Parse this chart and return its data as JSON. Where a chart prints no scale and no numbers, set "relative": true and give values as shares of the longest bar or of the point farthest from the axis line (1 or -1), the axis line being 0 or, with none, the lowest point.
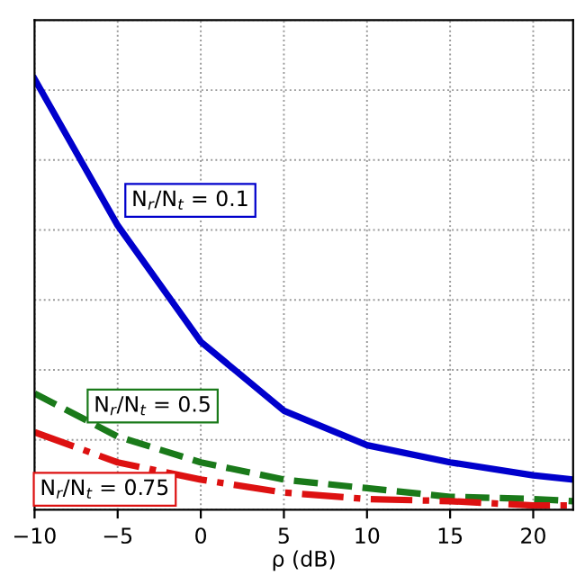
{
  "chart_data": {
    "type": "line",
    "xlabel": "ρ (dB)",
    "relative": true,
    "grid": true,
    "legend": false,
    "x": [
      -10,
      -5,
      0,
      5,
      10,
      15,
      20,
      22.4
    ],
    "xlim": [
      -10,
      22.4
    ],
    "xticks": [
      {
        "value": -10,
        "label": "−10"
      },
      {
        "value": -5,
        "label": "−5"
      },
      0,
      5,
      10,
      15,
      20
    ],
    "series": [
      {
        "name": "N$_{r}$/N$_{t}$ = 0.1",
        "color": "#0000cc",
        "line_style": "solid",
        "values": [
          1.0,
          0.66,
          0.39,
          0.23,
          0.15,
          0.11,
          0.08,
          0.07
        ]
      },
      {
        "name": "N$_{r}$/N$_{t}$ = 0.5",
        "color": "#1a7a1a",
        "line_style": "dashed",
        "values": [
          0.27,
          0.17,
          0.11,
          0.07,
          0.05,
          0.03,
          0.025,
          0.02
        ]
      },
      {
        "name": "N$_{r}$/N$_{t}$ = 0.75",
        "color": "#dd1111",
        "line_style": "dashdot",
        "values": [
          0.18,
          0.11,
          0.07,
          0.04,
          0.025,
          0.02,
          0.01,
          0.01
        ]
      }
    ]
  }
}
